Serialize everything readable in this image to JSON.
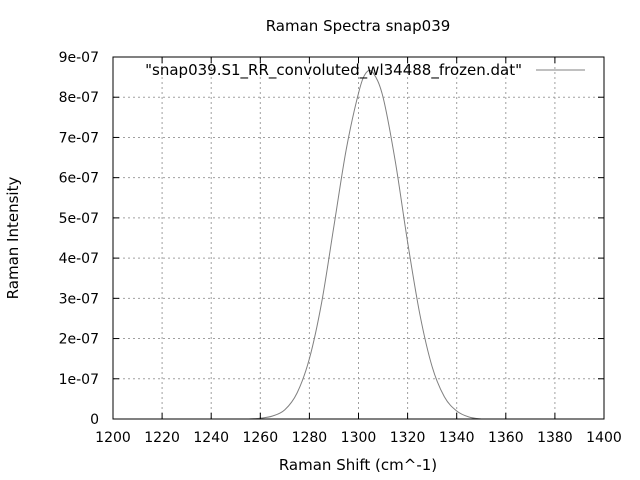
{
  "chart_data": {
    "type": "line",
    "title": "Raman Spectra snap039",
    "xlabel": "Raman Shift (cm^-1)",
    "ylabel": "Raman Intensity",
    "xlim": [
      1200,
      1400
    ],
    "ylim": [
      0,
      9e-07
    ],
    "grid": true,
    "legend_position": "top-right",
    "x_ticks": [
      1200,
      1220,
      1240,
      1260,
      1280,
      1300,
      1320,
      1340,
      1360,
      1380,
      1400
    ],
    "x_tick_labels": [
      "1200",
      "1220",
      "1240",
      "1260",
      "1280",
      "1300",
      "1320",
      "1340",
      "1360",
      "1380",
      "1400"
    ],
    "y_ticks": [
      0,
      1e-07,
      2e-07,
      3e-07,
      4e-07,
      5e-07,
      6e-07,
      7e-07,
      8e-07,
      9e-07
    ],
    "y_tick_labels": [
      "0",
      "1e-07",
      "2e-07",
      "3e-07",
      "4e-07",
      "5e-07",
      "6e-07",
      "7e-07",
      "8e-07",
      "9e-07"
    ],
    "series": [
      {
        "name": "\"snap039.S1_RR_convoluted_wl34488_frozen.dat\"",
        "color": "#808080",
        "x": [
          1255,
          1260,
          1265,
          1270,
          1275,
          1280,
          1285,
          1290,
          1295,
          1300,
          1303,
          1306,
          1310,
          1315,
          1320,
          1325,
          1330,
          1335,
          1340,
          1345,
          1350
        ],
        "y": [
          0,
          2e-09,
          7.4e-09,
          2.3e-08,
          6.5e-08,
          1.5e-07,
          2.9e-07,
          4.8e-07,
          6.7e-07,
          8.1e-07,
          8.6e-07,
          8.6e-07,
          8e-07,
          6.4e-07,
          4.4e-07,
          2.6e-07,
          1.3e-07,
          5.5e-08,
          2e-08,
          5e-09,
          0
        ]
      }
    ]
  }
}
